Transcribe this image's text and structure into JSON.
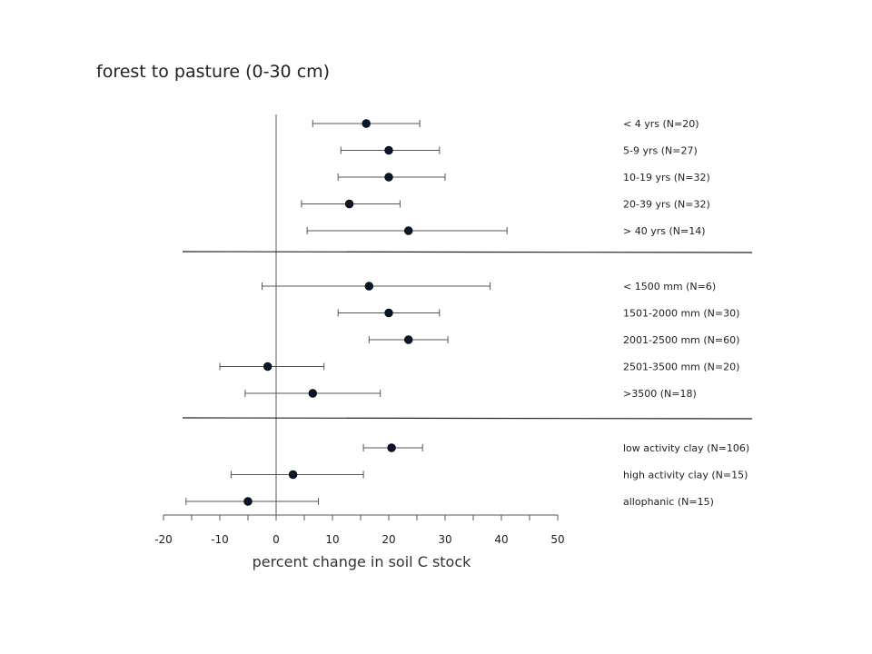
{
  "chart_data": {
    "type": "scatter",
    "title": "forest to pasture (0-30 cm)",
    "xlabel": "percent change in soil C stock",
    "ylabel": "",
    "xlim": [
      -20,
      50
    ],
    "xticks": [
      -20,
      -10,
      0,
      10,
      20,
      30,
      40,
      50
    ],
    "grid": false,
    "point_color": "#0a1630",
    "groups": [
      {
        "rows": [
          {
            "label": "< 4 yrs (N=20)",
            "value": 16,
            "low": 6.5,
            "high": 25.5
          },
          {
            "label": "5-9 yrs (N=27)",
            "value": 20,
            "low": 11.5,
            "high": 29
          },
          {
            "label": "10-19 yrs (N=32)",
            "value": 20,
            "low": 11,
            "high": 30
          },
          {
            "label": "20-39 yrs (N=32)",
            "value": 13,
            "low": 4.5,
            "high": 22
          },
          {
            "label": "> 40 yrs (N=14)",
            "value": 23.5,
            "low": 5.5,
            "high": 41
          }
        ]
      },
      {
        "rows": [
          {
            "label": "< 1500 mm (N=6)",
            "value": 16.5,
            "low": -2.5,
            "high": 38
          },
          {
            "label": "1501-2000 mm (N=30)",
            "value": 20,
            "low": 11,
            "high": 29
          },
          {
            "label": "2001-2500 mm (N=60)",
            "value": 23.5,
            "low": 16.5,
            "high": 30.5
          },
          {
            "label": "2501-3500 mm (N=20)",
            "value": -1.5,
            "low": -10,
            "high": 8.5
          },
          {
            "label": ">3500 (N=18)",
            "value": 6.5,
            "low": -5.5,
            "high": 18.5
          }
        ]
      },
      {
        "rows": [
          {
            "label": "low activity clay (N=106)",
            "value": 20.5,
            "low": 15.5,
            "high": 26
          },
          {
            "label": "high activity clay (N=15)",
            "value": 3,
            "low": -8,
            "high": 15.5
          },
          {
            "label": "allophanic (N=15)",
            "value": -5,
            "low": -16,
            "high": 7.5
          }
        ]
      }
    ]
  }
}
